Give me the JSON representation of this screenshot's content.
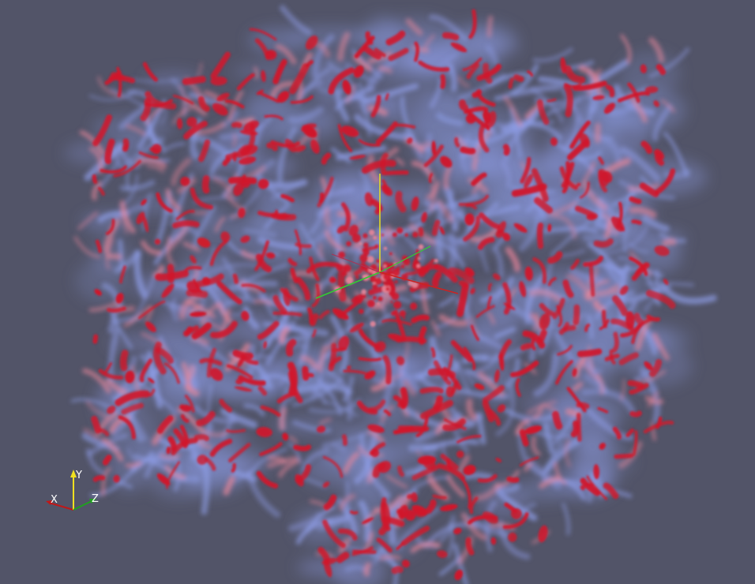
{
  "viewport": {
    "background": "#525468"
  },
  "volume_render": {
    "colormap": {
      "low": "#8f9ee8",
      "mid": "#e8869a",
      "high": "#d0192c"
    }
  },
  "center_axes": {
    "x_color": "#cc2222",
    "y_color": "#e8e020",
    "z_color": "#33cc33"
  },
  "orientation_axes": {
    "x_label": "X",
    "y_label": "Y",
    "z_label": "Z",
    "x_color": "#c01818",
    "y_color": "#f0e020",
    "z_color": "#20a020"
  }
}
